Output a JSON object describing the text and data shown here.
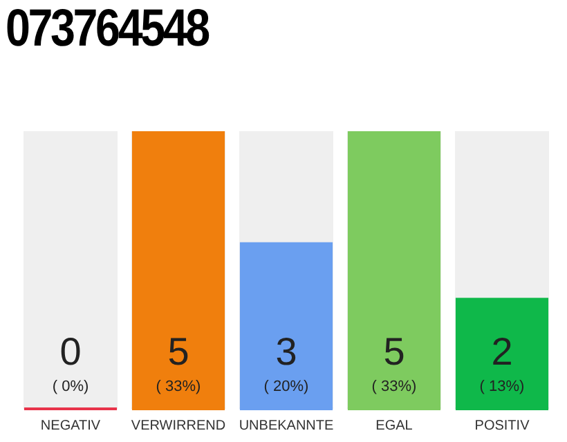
{
  "chart_data": {
    "type": "bar",
    "title": "073764548",
    "categories": [
      "NEGATIV",
      "VERWIRREND",
      "UNBEKANNTE",
      "EGAL",
      "POSITIV"
    ],
    "values": [
      0,
      5,
      3,
      5,
      2
    ],
    "colors": [
      "#e8334a",
      "#f07f0d",
      "#6a9ff0",
      "#7ecb5f",
      "#0fb84a"
    ],
    "value_labels": [
      "0",
      "5",
      "3",
      "5",
      "2"
    ],
    "annotations": [
      "( 0%)",
      "( 33%)",
      "( 20%)",
      "( 33%)",
      "( 13%)"
    ],
    "grid": false,
    "legend": false
  }
}
